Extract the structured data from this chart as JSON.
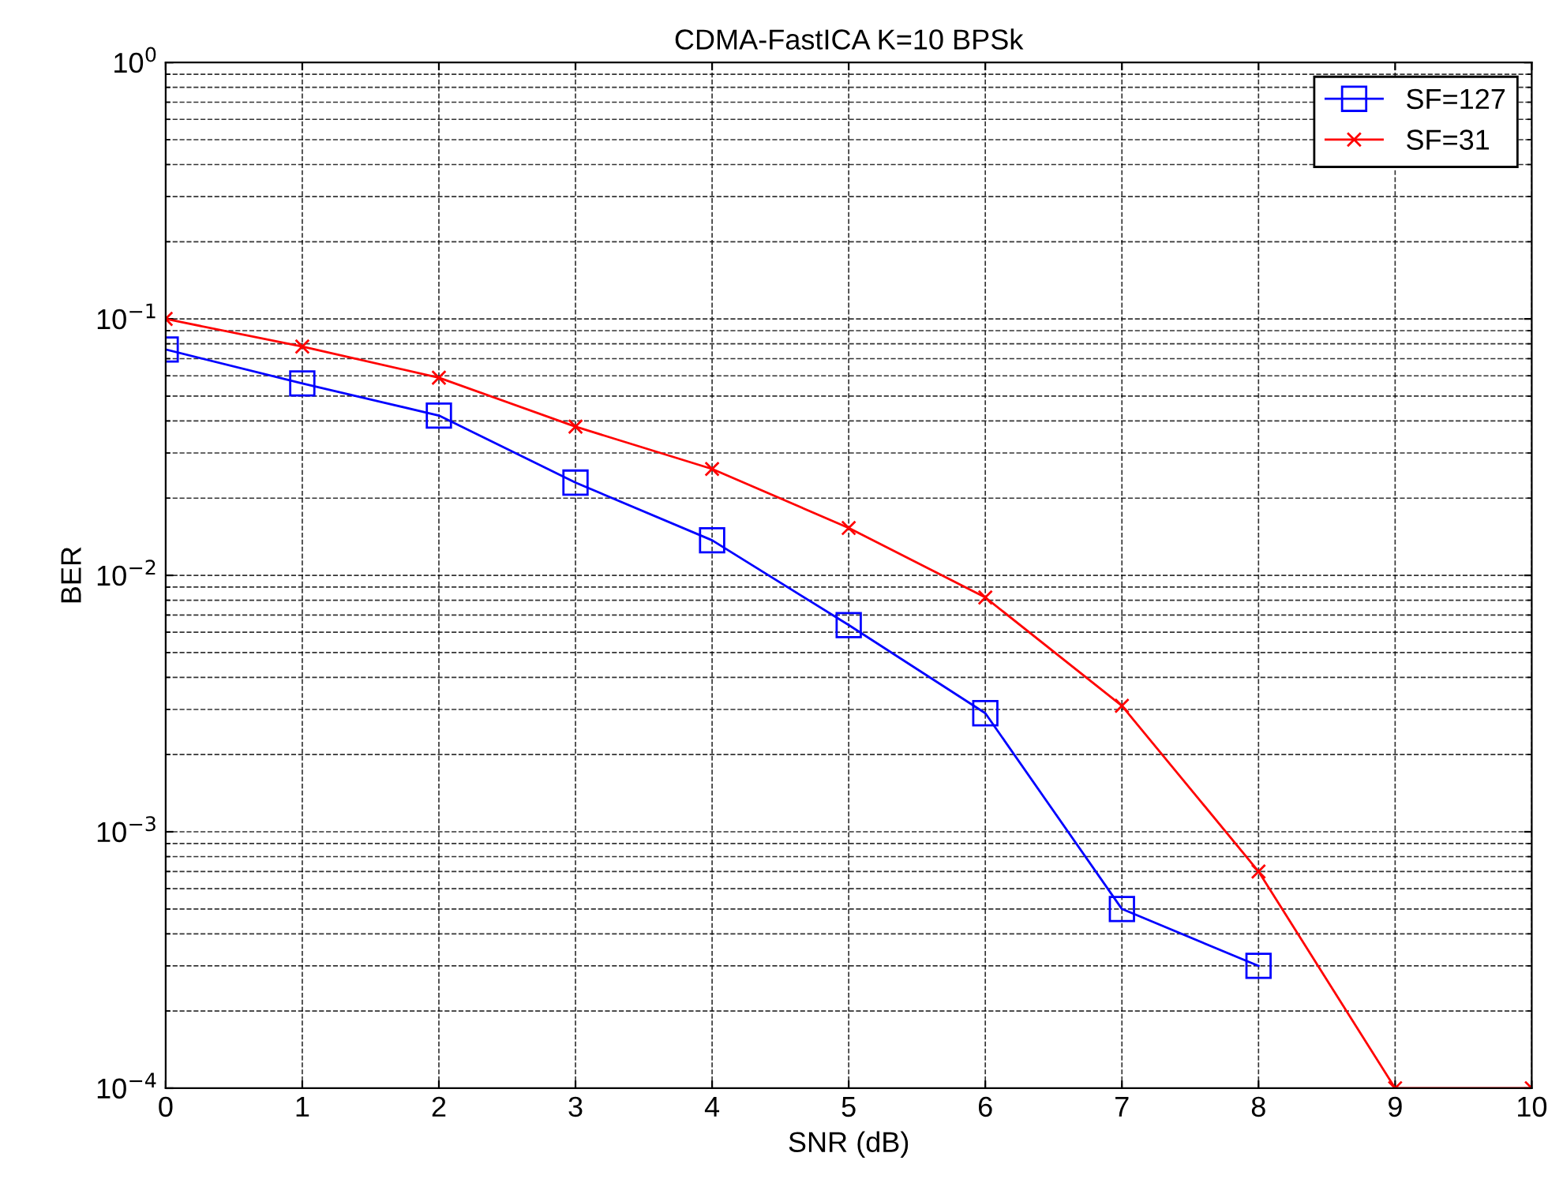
{
  "chart_data": {
    "type": "line",
    "title": "CDMA-FastICA K=10 BPSk",
    "xlabel": "SNR (dB)",
    "ylabel": "BER",
    "x": [
      0,
      1,
      2,
      3,
      4,
      5,
      6,
      7,
      8,
      9,
      10
    ],
    "series": [
      {
        "name": "SF=127",
        "color": "#0000ff",
        "marker": "square",
        "values": [
          0.076,
          0.056,
          0.042,
          0.023,
          0.0137,
          0.0064,
          0.0029,
          0.0005,
          0.0003,
          null,
          null
        ]
      },
      {
        "name": "SF=31",
        "color": "#ff0000",
        "marker": "cross",
        "values": [
          0.1,
          0.078,
          0.059,
          0.038,
          0.026,
          0.0153,
          0.0082,
          0.0031,
          0.0007,
          0.0001,
          0.0001
        ]
      }
    ],
    "log": "y",
    "xlim": [
      0,
      10
    ],
    "ylim": [
      0.0001,
      1
    ],
    "xticks": [
      0,
      1,
      2,
      3,
      4,
      5,
      6,
      7,
      8,
      9,
      10
    ],
    "yticks": [
      {
        "value": 0.0001,
        "label": "10$^{−4}$"
      },
      {
        "value": 0.001,
        "label": "10$^{−3}$"
      },
      {
        "value": 0.01,
        "label": "10$^{−2}$"
      },
      {
        "value": 0.1,
        "label": "10$^{−1}$"
      },
      {
        "value": 1,
        "label": "10$^{0}$"
      }
    ],
    "grid": true,
    "legend": "top right",
    "line_style": "solid"
  }
}
